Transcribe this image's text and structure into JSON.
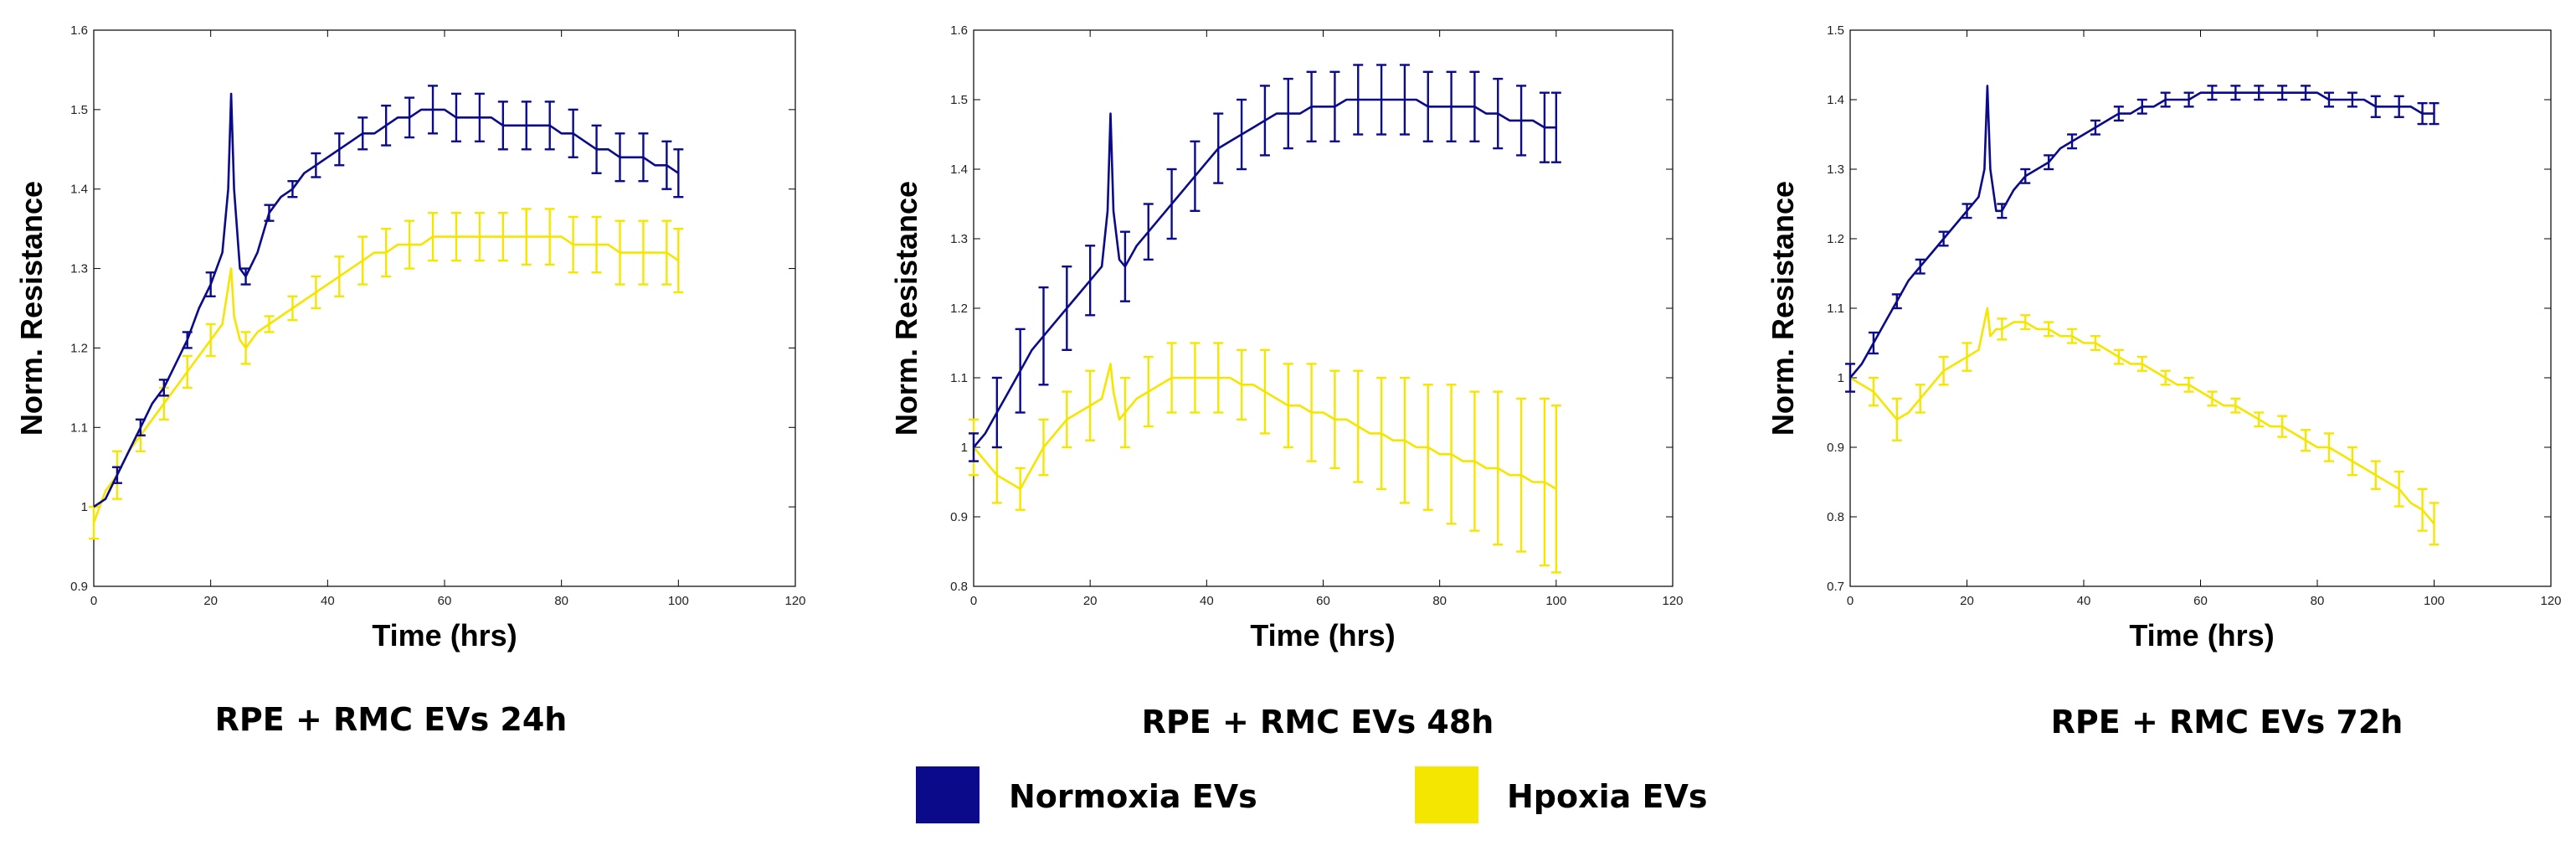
{
  "colors": {
    "normoxia": "#0a0a8a",
    "hypoxia": "#f5e600"
  },
  "legend": [
    {
      "label": "Normoxia EVs",
      "color": "#0a0a8a"
    },
    {
      "label": "Hpoxia EVs",
      "color": "#f5e600"
    }
  ],
  "chart_data": [
    {
      "type": "line",
      "caption": "RPE + RMC EVs 24h",
      "xlabel": "Time (hrs)",
      "ylabel": "Norm. Resistance",
      "xlim": [
        0,
        120
      ],
      "ylim": [
        0.9,
        1.6
      ],
      "xticks": [
        "0",
        "20",
        "40",
        "60",
        "80",
        "100",
        "120"
      ],
      "yticks": [
        "0.9",
        "1",
        "1.1",
        "1.2",
        "1.3",
        "1.4",
        "1.5",
        "1.6"
      ],
      "series": [
        {
          "name": "Normoxia EVs",
          "x": [
            0,
            2,
            4,
            6,
            8,
            10,
            12,
            14,
            16,
            18,
            20,
            22,
            23,
            23.5,
            24,
            25,
            26,
            28,
            30,
            32,
            34,
            36,
            38,
            40,
            42,
            44,
            46,
            48,
            50,
            52,
            54,
            56,
            58,
            60,
            62,
            64,
            66,
            68,
            70,
            72,
            74,
            76,
            78,
            80,
            82,
            84,
            86,
            88,
            90,
            92,
            94,
            96,
            98,
            100
          ],
          "y": [
            1.0,
            1.01,
            1.04,
            1.07,
            1.1,
            1.13,
            1.15,
            1.18,
            1.21,
            1.25,
            1.28,
            1.32,
            1.4,
            1.52,
            1.4,
            1.3,
            1.29,
            1.32,
            1.37,
            1.39,
            1.4,
            1.42,
            1.43,
            1.44,
            1.45,
            1.46,
            1.47,
            1.47,
            1.48,
            1.49,
            1.49,
            1.5,
            1.5,
            1.5,
            1.49,
            1.49,
            1.49,
            1.49,
            1.48,
            1.48,
            1.48,
            1.48,
            1.48,
            1.47,
            1.47,
            1.46,
            1.45,
            1.45,
            1.44,
            1.44,
            1.44,
            1.43,
            1.43,
            1.42
          ],
          "err": [
            0,
            0,
            0.01,
            0,
            0.01,
            0,
            0.01,
            0,
            0.01,
            0,
            0.015,
            0,
            0,
            0,
            0,
            0,
            0.01,
            0,
            0.01,
            0,
            0.01,
            0,
            0.015,
            0,
            0.02,
            0,
            0.02,
            0,
            0.025,
            0,
            0.025,
            0,
            0.03,
            0,
            0.03,
            0,
            0.03,
            0,
            0.03,
            0,
            0.03,
            0,
            0.03,
            0,
            0.03,
            0,
            0.03,
            0,
            0.03,
            0,
            0.03,
            0,
            0.03,
            0.03
          ]
        },
        {
          "name": "Hpoxia EVs",
          "x": [
            0,
            2,
            4,
            6,
            8,
            10,
            12,
            14,
            16,
            18,
            20,
            22,
            23.5,
            24,
            25,
            26,
            28,
            30,
            32,
            34,
            36,
            38,
            40,
            42,
            44,
            46,
            48,
            50,
            52,
            54,
            56,
            58,
            60,
            62,
            64,
            66,
            68,
            70,
            72,
            74,
            76,
            78,
            80,
            82,
            84,
            86,
            88,
            90,
            92,
            94,
            96,
            98,
            100
          ],
          "y": [
            0.98,
            1.02,
            1.04,
            1.07,
            1.09,
            1.11,
            1.13,
            1.15,
            1.17,
            1.19,
            1.21,
            1.23,
            1.3,
            1.24,
            1.21,
            1.2,
            1.22,
            1.23,
            1.24,
            1.25,
            1.26,
            1.27,
            1.28,
            1.29,
            1.3,
            1.31,
            1.32,
            1.32,
            1.33,
            1.33,
            1.33,
            1.34,
            1.34,
            1.34,
            1.34,
            1.34,
            1.34,
            1.34,
            1.34,
            1.34,
            1.34,
            1.34,
            1.34,
            1.33,
            1.33,
            1.33,
            1.33,
            1.32,
            1.32,
            1.32,
            1.32,
            1.32,
            1.31
          ],
          "err": [
            0.02,
            0,
            0.03,
            0,
            0.02,
            0,
            0.02,
            0,
            0.02,
            0,
            0.02,
            0,
            0,
            0,
            0,
            0.02,
            0,
            0.01,
            0,
            0.015,
            0,
            0.02,
            0,
            0.025,
            0,
            0.03,
            0,
            0.03,
            0,
            0.03,
            0,
            0.03,
            0,
            0.03,
            0,
            0.03,
            0,
            0.03,
            0,
            0.035,
            0,
            0.035,
            0,
            0.035,
            0,
            0.035,
            0,
            0.04,
            0,
            0.04,
            0,
            0.04,
            0.04
          ]
        }
      ]
    },
    {
      "type": "line",
      "caption": "RPE + RMC EVs 48h",
      "xlabel": "Time (hrs)",
      "ylabel": "Norm. Resistance",
      "xlim": [
        0,
        120
      ],
      "ylim": [
        0.8,
        1.6
      ],
      "xticks": [
        "0",
        "20",
        "40",
        "60",
        "80",
        "100",
        "120"
      ],
      "yticks": [
        "0.8",
        "0.9",
        "1",
        "1.1",
        "1.2",
        "1.3",
        "1.4",
        "1.5",
        "1.6"
      ],
      "series": [
        {
          "name": "Normoxia EVs",
          "x": [
            0,
            2,
            4,
            6,
            8,
            10,
            12,
            14,
            16,
            18,
            20,
            22,
            23,
            23.5,
            24,
            25,
            26,
            28,
            30,
            32,
            34,
            36,
            38,
            40,
            42,
            44,
            46,
            48,
            50,
            52,
            54,
            56,
            58,
            60,
            62,
            64,
            66,
            68,
            70,
            72,
            74,
            76,
            78,
            80,
            82,
            84,
            86,
            88,
            90,
            92,
            94,
            96,
            98,
            100
          ],
          "y": [
            1.0,
            1.02,
            1.05,
            1.08,
            1.11,
            1.14,
            1.16,
            1.18,
            1.2,
            1.22,
            1.24,
            1.26,
            1.34,
            1.48,
            1.34,
            1.27,
            1.26,
            1.29,
            1.31,
            1.33,
            1.35,
            1.37,
            1.39,
            1.41,
            1.43,
            1.44,
            1.45,
            1.46,
            1.47,
            1.48,
            1.48,
            1.48,
            1.49,
            1.49,
            1.49,
            1.5,
            1.5,
            1.5,
            1.5,
            1.5,
            1.5,
            1.5,
            1.49,
            1.49,
            1.49,
            1.49,
            1.49,
            1.48,
            1.48,
            1.47,
            1.47,
            1.47,
            1.46,
            1.46
          ],
          "err": [
            0.02,
            0,
            0.05,
            0,
            0.06,
            0,
            0.07,
            0,
            0.06,
            0,
            0.05,
            0,
            0,
            0,
            0,
            0,
            0.05,
            0,
            0.04,
            0,
            0.05,
            0,
            0.05,
            0,
            0.05,
            0,
            0.05,
            0,
            0.05,
            0,
            0.05,
            0,
            0.05,
            0,
            0.05,
            0,
            0.05,
            0,
            0.05,
            0,
            0.05,
            0,
            0.05,
            0,
            0.05,
            0,
            0.05,
            0,
            0.05,
            0,
            0.05,
            0,
            0.05,
            0.05
          ]
        },
        {
          "name": "Hpoxia EVs",
          "x": [
            0,
            2,
            4,
            6,
            8,
            10,
            12,
            14,
            16,
            18,
            20,
            22,
            23.5,
            24,
            25,
            26,
            28,
            30,
            32,
            34,
            36,
            38,
            40,
            42,
            44,
            46,
            48,
            50,
            52,
            54,
            56,
            58,
            60,
            62,
            64,
            66,
            68,
            70,
            72,
            74,
            76,
            78,
            80,
            82,
            84,
            86,
            88,
            90,
            92,
            94,
            96,
            98,
            100
          ],
          "y": [
            1.0,
            0.98,
            0.96,
            0.95,
            0.94,
            0.97,
            1.0,
            1.02,
            1.04,
            1.05,
            1.06,
            1.07,
            1.12,
            1.08,
            1.04,
            1.05,
            1.07,
            1.08,
            1.09,
            1.1,
            1.1,
            1.1,
            1.1,
            1.1,
            1.1,
            1.09,
            1.09,
            1.08,
            1.07,
            1.06,
            1.06,
            1.05,
            1.05,
            1.04,
            1.04,
            1.03,
            1.02,
            1.02,
            1.01,
            1.01,
            1.0,
            1.0,
            0.99,
            0.99,
            0.98,
            0.98,
            0.97,
            0.97,
            0.96,
            0.96,
            0.95,
            0.95,
            0.94
          ],
          "err": [
            0.04,
            0,
            0.04,
            0,
            0.03,
            0,
            0.04,
            0,
            0.04,
            0,
            0.05,
            0,
            0,
            0,
            0,
            0.05,
            0,
            0.05,
            0,
            0.05,
            0,
            0.05,
            0,
            0.05,
            0,
            0.05,
            0,
            0.06,
            0,
            0.06,
            0,
            0.07,
            0,
            0.07,
            0,
            0.08,
            0,
            0.08,
            0,
            0.09,
            0,
            0.09,
            0,
            0.1,
            0,
            0.1,
            0,
            0.11,
            0,
            0.11,
            0,
            0.12,
            0.12
          ]
        }
      ]
    },
    {
      "type": "line",
      "caption": "RPE + RMC EVs 72h",
      "xlabel": "Time (hrs)",
      "ylabel": "Norm. Resistance",
      "xlim": [
        0,
        120
      ],
      "ylim": [
        0.7,
        1.5
      ],
      "xticks": [
        "0",
        "20",
        "40",
        "60",
        "80",
        "100",
        "120"
      ],
      "yticks": [
        "0.7",
        "0.8",
        "0.9",
        "1",
        "1.1",
        "1.2",
        "1.3",
        "1.4",
        "1.5"
      ],
      "series": [
        {
          "name": "Normoxia EVs",
          "x": [
            0,
            2,
            4,
            6,
            8,
            10,
            12,
            14,
            16,
            18,
            20,
            22,
            23,
            23.5,
            24,
            25,
            26,
            28,
            30,
            32,
            34,
            36,
            38,
            40,
            42,
            44,
            46,
            48,
            50,
            52,
            54,
            56,
            58,
            60,
            62,
            64,
            66,
            68,
            70,
            72,
            74,
            76,
            78,
            80,
            82,
            84,
            86,
            88,
            90,
            92,
            94,
            96,
            98,
            100
          ],
          "y": [
            1.0,
            1.02,
            1.05,
            1.08,
            1.11,
            1.14,
            1.16,
            1.18,
            1.2,
            1.22,
            1.24,
            1.26,
            1.3,
            1.42,
            1.3,
            1.24,
            1.24,
            1.27,
            1.29,
            1.3,
            1.31,
            1.33,
            1.34,
            1.35,
            1.36,
            1.37,
            1.38,
            1.38,
            1.39,
            1.39,
            1.4,
            1.4,
            1.4,
            1.41,
            1.41,
            1.41,
            1.41,
            1.41,
            1.41,
            1.41,
            1.41,
            1.41,
            1.41,
            1.41,
            1.4,
            1.4,
            1.4,
            1.4,
            1.39,
            1.39,
            1.39,
            1.39,
            1.38,
            1.38
          ],
          "err": [
            0.02,
            0,
            0.015,
            0,
            0.01,
            0,
            0.01,
            0,
            0.01,
            0,
            0.01,
            0,
            0,
            0,
            0,
            0,
            0.01,
            0,
            0.01,
            0,
            0.01,
            0,
            0.01,
            0,
            0.01,
            0,
            0.01,
            0,
            0.01,
            0,
            0.01,
            0,
            0.01,
            0,
            0.01,
            0,
            0.01,
            0,
            0.01,
            0,
            0.01,
            0,
            0.01,
            0,
            0.01,
            0,
            0.01,
            0,
            0.015,
            0,
            0.015,
            0,
            0.015,
            0.015
          ]
        },
        {
          "name": "Hpoxia EVs",
          "x": [
            0,
            2,
            4,
            6,
            8,
            10,
            12,
            14,
            16,
            18,
            20,
            22,
            23.5,
            24,
            25,
            26,
            28,
            30,
            32,
            34,
            36,
            38,
            40,
            42,
            44,
            46,
            48,
            50,
            52,
            54,
            56,
            58,
            60,
            62,
            64,
            66,
            68,
            70,
            72,
            74,
            76,
            78,
            80,
            82,
            84,
            86,
            88,
            90,
            92,
            94,
            96,
            98,
            100
          ],
          "y": [
            1.0,
            0.99,
            0.98,
            0.96,
            0.94,
            0.95,
            0.97,
            0.99,
            1.01,
            1.02,
            1.03,
            1.04,
            1.1,
            1.06,
            1.07,
            1.07,
            1.08,
            1.08,
            1.07,
            1.07,
            1.06,
            1.06,
            1.05,
            1.05,
            1.04,
            1.03,
            1.02,
            1.02,
            1.01,
            1.0,
            0.99,
            0.99,
            0.98,
            0.97,
            0.96,
            0.96,
            0.95,
            0.94,
            0.93,
            0.93,
            0.92,
            0.91,
            0.9,
            0.9,
            0.89,
            0.88,
            0.87,
            0.86,
            0.85,
            0.84,
            0.82,
            0.81,
            0.79
          ],
          "err": [
            0.02,
            0,
            0.02,
            0,
            0.03,
            0,
            0.02,
            0,
            0.02,
            0,
            0.02,
            0,
            0,
            0,
            0,
            0.015,
            0,
            0.01,
            0,
            0.01,
            0,
            0.01,
            0,
            0.01,
            0,
            0.01,
            0,
            0.01,
            0,
            0.01,
            0,
            0.01,
            0,
            0.01,
            0,
            0.01,
            0,
            0.01,
            0,
            0.015,
            0,
            0.015,
            0,
            0.02,
            0,
            0.02,
            0,
            0.02,
            0,
            0.025,
            0,
            0.03,
            0.03
          ]
        }
      ]
    }
  ]
}
